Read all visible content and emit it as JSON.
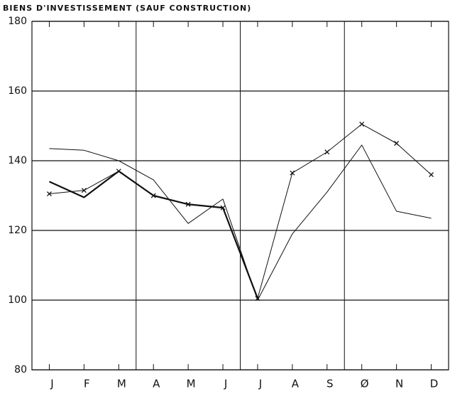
{
  "chart_data": {
    "type": "line",
    "title": "BIENS D'INVESTISSEMENT (SAUF CONSTRUCTION)",
    "categories": [
      "J",
      "F",
      "M",
      "A",
      "M",
      "J",
      "J",
      "A",
      "S",
      "Ø",
      "N",
      "D"
    ],
    "series": [
      {
        "color": "#111111",
        "line_width": 1,
        "marker": "none",
        "values": [
          143.5,
          143,
          140,
          134.5,
          122,
          129,
          100,
          119,
          131,
          144.5,
          125.5,
          123.5
        ]
      },
      {
        "color": "#111111",
        "line_width": 2.2,
        "marker": "none",
        "values": [
          134,
          129.5,
          137,
          130,
          127.5,
          126.5,
          100.5,
          null,
          null,
          null,
          null,
          null
        ]
      },
      {
        "color": "#111111",
        "line_width": 1,
        "marker": "x",
        "values": [
          130.5,
          131.5,
          137,
          130,
          127.5,
          126.5,
          100.5,
          136.5,
          142.5,
          150.5,
          145,
          136
        ]
      }
    ],
    "ylim": [
      80,
      180
    ],
    "yticks": [
      80,
      100,
      120,
      140,
      160,
      180
    ],
    "grid": true
  }
}
